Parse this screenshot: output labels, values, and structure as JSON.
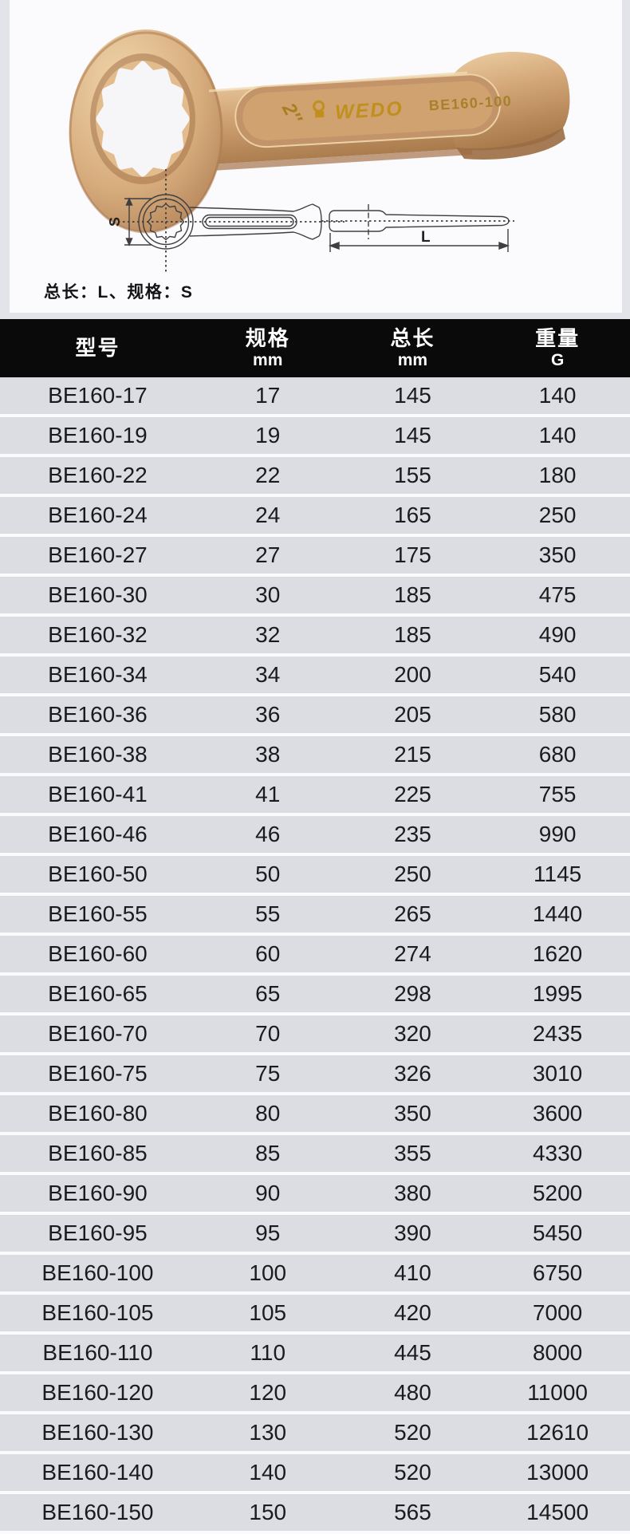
{
  "photo": {
    "size_mark": "2″",
    "brand": "WEDO",
    "model": "BE160-100"
  },
  "diagram": {
    "dim_size": "S",
    "dim_length": "L",
    "caption": "总长：L、规格：S"
  },
  "table": {
    "columns": [
      {
        "label": "型号",
        "unit": ""
      },
      {
        "label": "规格",
        "unit": "mm"
      },
      {
        "label": "总长",
        "unit": "mm"
      },
      {
        "label": "重量",
        "unit": "G"
      }
    ],
    "rows": [
      [
        "BE160-17",
        "17",
        "145",
        "140"
      ],
      [
        "BE160-19",
        "19",
        "145",
        "140"
      ],
      [
        "BE160-22",
        "22",
        "155",
        "180"
      ],
      [
        "BE160-24",
        "24",
        "165",
        "250"
      ],
      [
        "BE160-27",
        "27",
        "175",
        "350"
      ],
      [
        "BE160-30",
        "30",
        "185",
        "475"
      ],
      [
        "BE160-32",
        "32",
        "185",
        "490"
      ],
      [
        "BE160-34",
        "34",
        "200",
        "540"
      ],
      [
        "BE160-36",
        "36",
        "205",
        "580"
      ],
      [
        "BE160-38",
        "38",
        "215",
        "680"
      ],
      [
        "BE160-41",
        "41",
        "225",
        "755"
      ],
      [
        "BE160-46",
        "46",
        "235",
        "990"
      ],
      [
        "BE160-50",
        "50",
        "250",
        "1145"
      ],
      [
        "BE160-55",
        "55",
        "265",
        "1440"
      ],
      [
        "BE160-60",
        "60",
        "274",
        "1620"
      ],
      [
        "BE160-65",
        "65",
        "298",
        "1995"
      ],
      [
        "BE160-70",
        "70",
        "320",
        "2435"
      ],
      [
        "BE160-75",
        "75",
        "326",
        "3010"
      ],
      [
        "BE160-80",
        "80",
        "350",
        "3600"
      ],
      [
        "BE160-85",
        "85",
        "355",
        "4330"
      ],
      [
        "BE160-90",
        "90",
        "380",
        "5200"
      ],
      [
        "BE160-95",
        "95",
        "390",
        "5450"
      ],
      [
        "BE160-100",
        "100",
        "410",
        "6750"
      ],
      [
        "BE160-105",
        "105",
        "420",
        "7000"
      ],
      [
        "BE160-110",
        "110",
        "445",
        "8000"
      ],
      [
        "BE160-120",
        "120",
        "480",
        "11000"
      ],
      [
        "BE160-130",
        "130",
        "520",
        "12610"
      ],
      [
        "BE160-140",
        "140",
        "520",
        "13000"
      ],
      [
        "BE160-150",
        "150",
        "565",
        "14500"
      ]
    ]
  },
  "colors": {
    "page_bg": "#e3e4ea",
    "card_bg": "#fbfbfd",
    "header_bg": "#0a0a0b",
    "header_text": "#ffffff",
    "row_bg": "#dcdde3",
    "row_text": "#1b1b1d",
    "brass_mid": "#d3a678",
    "brass_dark": "#a5744a",
    "engraving_gold": "#c08f1d",
    "drawing_line": "#3f3f41"
  }
}
